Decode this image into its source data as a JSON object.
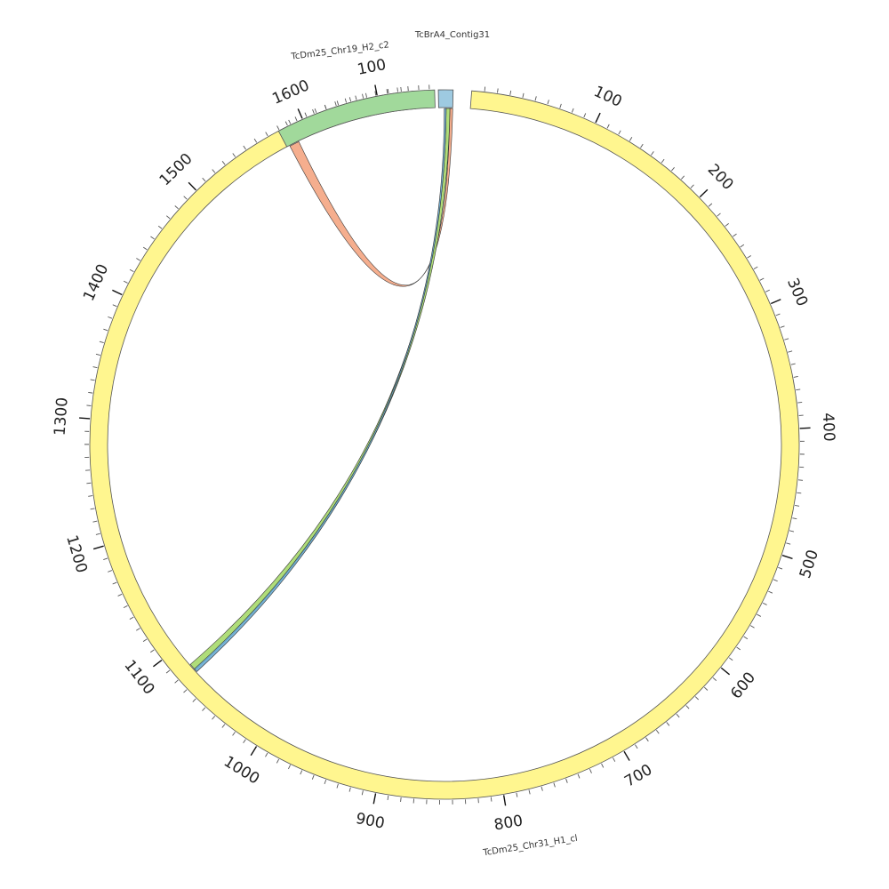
{
  "segments": [
    {
      "id": "chr31",
      "name": "TcDm25_Chr31_H1_cl",
      "color": "#fff68f",
      "length": 1690,
      "tick_labels": [
        "100",
        "200",
        "300",
        "400",
        "500",
        "600",
        "700",
        "800",
        "900",
        "1000",
        "1100",
        "1200",
        "1300",
        "1400",
        "1500",
        "1600"
      ]
    },
    {
      "id": "chr19",
      "name": "TcDm25_Chr19_H2_c2",
      "color": "#a1d99b",
      "length": 155,
      "tick_labels": [
        "100"
      ]
    },
    {
      "id": "contig31",
      "name": "TcBrA4_Contig31",
      "color": "#9ecae1",
      "length": 15,
      "tick_labels": []
    }
  ],
  "links": [
    {
      "from": "contig31",
      "from_start": 12,
      "from_end": 15,
      "to": "chr19",
      "to_start": 3,
      "to_end": 13,
      "color": "#f4a582"
    },
    {
      "from": "contig31",
      "from_start": 8,
      "from_end": 12,
      "to": "chr31",
      "to_start": 1077,
      "to_end": 1083,
      "color": "#a6d96a"
    },
    {
      "from": "contig31",
      "from_start": 6,
      "from_end": 8,
      "to": "chr31",
      "to_start": 1075,
      "to_end": 1078,
      "color": "#6baed6"
    }
  ]
}
